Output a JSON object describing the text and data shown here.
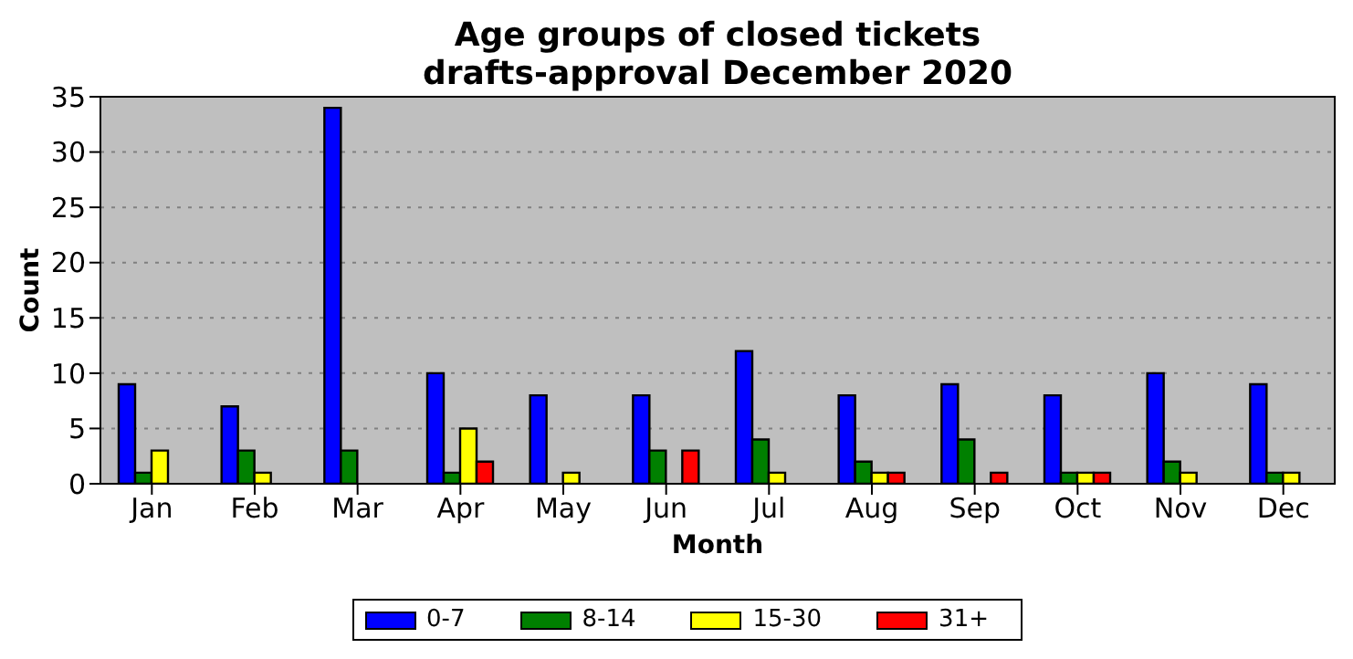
{
  "chart_data": {
    "type": "bar",
    "title": "Age groups of closed tickets\ndrafts-approval December 2020",
    "xlabel": "Month",
    "ylabel": "Count",
    "categories": [
      "Jan",
      "Feb",
      "Mar",
      "Apr",
      "May",
      "Jun",
      "Jul",
      "Aug",
      "Sep",
      "Oct",
      "Nov",
      "Dec"
    ],
    "series": [
      {
        "name": "0-7",
        "color": "#0000ff",
        "values": [
          9,
          7,
          34,
          10,
          8,
          8,
          12,
          8,
          9,
          8,
          10,
          9
        ]
      },
      {
        "name": "8-14",
        "color": "#008000",
        "values": [
          1,
          3,
          3,
          1,
          0,
          3,
          4,
          2,
          4,
          1,
          2,
          1
        ]
      },
      {
        "name": "15-30",
        "color": "#ffff00",
        "values": [
          3,
          1,
          0,
          5,
          1,
          0,
          1,
          1,
          0,
          1,
          1,
          1
        ]
      },
      {
        "name": "31+",
        "color": "#ff0000",
        "values": [
          0,
          0,
          0,
          2,
          0,
          3,
          0,
          1,
          1,
          1,
          0,
          0
        ]
      }
    ],
    "ylim": [
      0,
      35
    ],
    "yticks": [
      0,
      5,
      10,
      15,
      20,
      25,
      30,
      35
    ],
    "grid": "y",
    "legend": "bottom"
  }
}
